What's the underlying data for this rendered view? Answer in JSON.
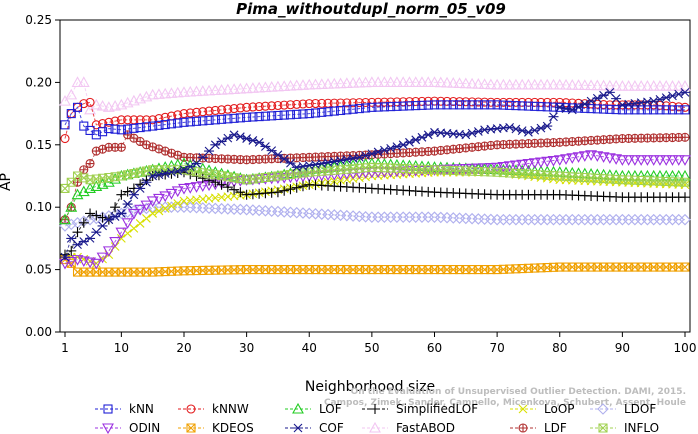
{
  "chart_data": {
    "type": "line",
    "title": "Pima_withoutdupl_norm_05_v09",
    "xlabel": "Neighborhood size",
    "ylabel": "AP",
    "xlim": [
      1,
      100
    ],
    "ylim": [
      0.0,
      0.25
    ],
    "x_ticks": [
      "1",
      "10",
      "20",
      "30",
      "40",
      "50",
      "60",
      "70",
      "80",
      "90",
      "100"
    ],
    "y_ticks": [
      "0.00",
      "0.05",
      "0.10",
      "0.15",
      "0.20",
      "0.25"
    ],
    "grid": false,
    "legend_position": "bottom",
    "credit": [
      "On the Evaluation of Unsupervised Outlier Detection. DAMI, 2015.",
      "Campos, Zimek, Sander, Campello, Micenkova, Schubert, Assent, Houle"
    ],
    "series": [
      {
        "name": "kNN",
        "color": "#1f1fd6",
        "marker": "square",
        "anchors": [
          [
            1,
            0.166
          ],
          [
            2,
            0.175
          ],
          [
            3,
            0.18
          ],
          [
            4,
            0.165
          ],
          [
            6,
            0.158
          ],
          [
            8,
            0.163
          ],
          [
            10,
            0.162
          ],
          [
            15,
            0.165
          ],
          [
            20,
            0.168
          ],
          [
            30,
            0.172
          ],
          [
            40,
            0.175
          ],
          [
            50,
            0.18
          ],
          [
            60,
            0.182
          ],
          [
            70,
            0.182
          ],
          [
            80,
            0.18
          ],
          [
            90,
            0.178
          ],
          [
            100,
            0.178
          ]
        ]
      },
      {
        "name": "kNNW",
        "color": "#e31a1c",
        "marker": "circle",
        "anchors": [
          [
            1,
            0.155
          ],
          [
            2,
            0.175
          ],
          [
            3,
            0.18
          ],
          [
            4,
            0.183
          ],
          [
            5,
            0.184
          ],
          [
            6,
            0.166
          ],
          [
            8,
            0.168
          ],
          [
            10,
            0.17
          ],
          [
            15,
            0.17
          ],
          [
            20,
            0.175
          ],
          [
            30,
            0.18
          ],
          [
            40,
            0.183
          ],
          [
            50,
            0.184
          ],
          [
            60,
            0.185
          ],
          [
            70,
            0.184
          ],
          [
            80,
            0.184
          ],
          [
            88,
            0.182
          ],
          [
            95,
            0.182
          ],
          [
            100,
            0.18
          ]
        ]
      },
      {
        "name": "LOF",
        "color": "#22cc22",
        "marker": "triangle",
        "anchors": [
          [
            1,
            0.09
          ],
          [
            2,
            0.1
          ],
          [
            3,
            0.11
          ],
          [
            5,
            0.115
          ],
          [
            8,
            0.12
          ],
          [
            10,
            0.125
          ],
          [
            15,
            0.13
          ],
          [
            20,
            0.135
          ],
          [
            25,
            0.128
          ],
          [
            30,
            0.122
          ],
          [
            35,
            0.125
          ],
          [
            40,
            0.13
          ],
          [
            50,
            0.135
          ],
          [
            60,
            0.132
          ],
          [
            70,
            0.13
          ],
          [
            80,
            0.128
          ],
          [
            90,
            0.125
          ],
          [
            100,
            0.125
          ]
        ]
      },
      {
        "name": "SimplifiedLOF",
        "color": "#000000",
        "marker": "plus",
        "anchors": [
          [
            1,
            0.062
          ],
          [
            2,
            0.065
          ],
          [
            3,
            0.08
          ],
          [
            5,
            0.095
          ],
          [
            8,
            0.09
          ],
          [
            10,
            0.11
          ],
          [
            12,
            0.115
          ],
          [
            15,
            0.125
          ],
          [
            20,
            0.128
          ],
          [
            25,
            0.12
          ],
          [
            30,
            0.11
          ],
          [
            35,
            0.112
          ],
          [
            40,
            0.118
          ],
          [
            50,
            0.115
          ],
          [
            60,
            0.112
          ],
          [
            70,
            0.11
          ],
          [
            80,
            0.11
          ],
          [
            90,
            0.108
          ],
          [
            100,
            0.108
          ]
        ]
      },
      {
        "name": "LoOP",
        "color": "#d8e000",
        "marker": "x",
        "anchors": [
          [
            1,
            0.06
          ],
          [
            3,
            0.06
          ],
          [
            6,
            0.055
          ],
          [
            8,
            0.062
          ],
          [
            10,
            0.075
          ],
          [
            15,
            0.095
          ],
          [
            20,
            0.105
          ],
          [
            30,
            0.11
          ],
          [
            40,
            0.118
          ],
          [
            50,
            0.125
          ],
          [
            60,
            0.128
          ],
          [
            70,
            0.128
          ],
          [
            80,
            0.122
          ],
          [
            90,
            0.12
          ],
          [
            100,
            0.118
          ]
        ]
      },
      {
        "name": "LDOF",
        "color": "#b0b0ee",
        "marker": "diamond",
        "anchors": [
          [
            1,
            0.085
          ],
          [
            5,
            0.09
          ],
          [
            10,
            0.095
          ],
          [
            15,
            0.1
          ],
          [
            20,
            0.1
          ],
          [
            30,
            0.098
          ],
          [
            40,
            0.095
          ],
          [
            50,
            0.092
          ],
          [
            60,
            0.092
          ],
          [
            70,
            0.09
          ],
          [
            80,
            0.09
          ],
          [
            90,
            0.09
          ],
          [
            100,
            0.09
          ]
        ]
      },
      {
        "name": "ODIN",
        "color": "#9b30e0",
        "marker": "triangle-down",
        "anchors": [
          [
            1,
            0.055
          ],
          [
            3,
            0.058
          ],
          [
            6,
            0.055
          ],
          [
            8,
            0.065
          ],
          [
            10,
            0.08
          ],
          [
            12,
            0.095
          ],
          [
            15,
            0.105
          ],
          [
            20,
            0.115
          ],
          [
            30,
            0.122
          ],
          [
            40,
            0.125
          ],
          [
            50,
            0.128
          ],
          [
            60,
            0.13
          ],
          [
            70,
            0.132
          ],
          [
            80,
            0.138
          ],
          [
            85,
            0.142
          ],
          [
            90,
            0.138
          ],
          [
            100,
            0.138
          ]
        ]
      },
      {
        "name": "KDEOS",
        "color": "#f0a000",
        "marker": "square-x",
        "anchors": [
          [
            1,
            0.058
          ],
          [
            2,
            0.055
          ],
          [
            3,
            0.048
          ],
          [
            6,
            0.048
          ],
          [
            10,
            0.048
          ],
          [
            15,
            0.048
          ],
          [
            20,
            0.049
          ],
          [
            30,
            0.05
          ],
          [
            40,
            0.05
          ],
          [
            50,
            0.05
          ],
          [
            60,
            0.05
          ],
          [
            70,
            0.05
          ],
          [
            80,
            0.052
          ],
          [
            90,
            0.052
          ],
          [
            100,
            0.052
          ]
        ]
      },
      {
        "name": "COF",
        "color": "#1a1a8c",
        "marker": "asterisk",
        "anchors": [
          [
            1,
            0.06
          ],
          [
            2,
            0.075
          ],
          [
            3,
            0.07
          ],
          [
            5,
            0.075
          ],
          [
            8,
            0.09
          ],
          [
            10,
            0.095
          ],
          [
            12,
            0.11
          ],
          [
            15,
            0.125
          ],
          [
            20,
            0.13
          ],
          [
            22,
            0.135
          ],
          [
            25,
            0.15
          ],
          [
            28,
            0.158
          ],
          [
            32,
            0.152
          ],
          [
            35,
            0.142
          ],
          [
            38,
            0.132
          ],
          [
            42,
            0.135
          ],
          [
            48,
            0.14
          ],
          [
            55,
            0.15
          ],
          [
            60,
            0.16
          ],
          [
            65,
            0.158
          ],
          [
            68,
            0.162
          ],
          [
            72,
            0.164
          ],
          [
            75,
            0.16
          ],
          [
            78,
            0.165
          ],
          [
            80,
            0.18
          ],
          [
            82,
            0.178
          ],
          [
            85,
            0.185
          ],
          [
            88,
            0.192
          ],
          [
            90,
            0.182
          ],
          [
            95,
            0.185
          ],
          [
            100,
            0.192
          ]
        ]
      },
      {
        "name": "FastABOD",
        "color": "#f2c6f2",
        "marker": "triangle",
        "anchors": [
          [
            1,
            0.185
          ],
          [
            2,
            0.19
          ],
          [
            3,
            0.2
          ],
          [
            4,
            0.2
          ],
          [
            5,
            0.178
          ],
          [
            6,
            0.182
          ],
          [
            8,
            0.18
          ],
          [
            10,
            0.182
          ],
          [
            15,
            0.19
          ],
          [
            20,
            0.192
          ],
          [
            30,
            0.195
          ],
          [
            40,
            0.198
          ],
          [
            50,
            0.2
          ],
          [
            60,
            0.2
          ],
          [
            70,
            0.198
          ],
          [
            80,
            0.198
          ],
          [
            90,
            0.197
          ],
          [
            100,
            0.197
          ]
        ]
      },
      {
        "name": "LDF",
        "color": "#b03030",
        "marker": "circle-plus",
        "anchors": [
          [
            1,
            0.09
          ],
          [
            2,
            0.1
          ],
          [
            3,
            0.12
          ],
          [
            4,
            0.13
          ],
          [
            5,
            0.135
          ],
          [
            6,
            0.145
          ],
          [
            8,
            0.148
          ],
          [
            10,
            0.148
          ],
          [
            11,
            0.158
          ],
          [
            14,
            0.15
          ],
          [
            20,
            0.14
          ],
          [
            30,
            0.138
          ],
          [
            40,
            0.14
          ],
          [
            50,
            0.142
          ],
          [
            60,
            0.145
          ],
          [
            70,
            0.15
          ],
          [
            80,
            0.152
          ],
          [
            90,
            0.155
          ],
          [
            100,
            0.156
          ]
        ]
      },
      {
        "name": "INFLO",
        "color": "#a0d050",
        "marker": "square-x",
        "anchors": [
          [
            1,
            0.115
          ],
          [
            2,
            0.12
          ],
          [
            3,
            0.125
          ],
          [
            5,
            0.122
          ],
          [
            10,
            0.125
          ],
          [
            15,
            0.13
          ],
          [
            20,
            0.13
          ],
          [
            30,
            0.122
          ],
          [
            40,
            0.128
          ],
          [
            50,
            0.132
          ],
          [
            60,
            0.13
          ],
          [
            70,
            0.128
          ],
          [
            80,
            0.125
          ],
          [
            90,
            0.122
          ],
          [
            100,
            0.12
          ]
        ]
      }
    ]
  }
}
